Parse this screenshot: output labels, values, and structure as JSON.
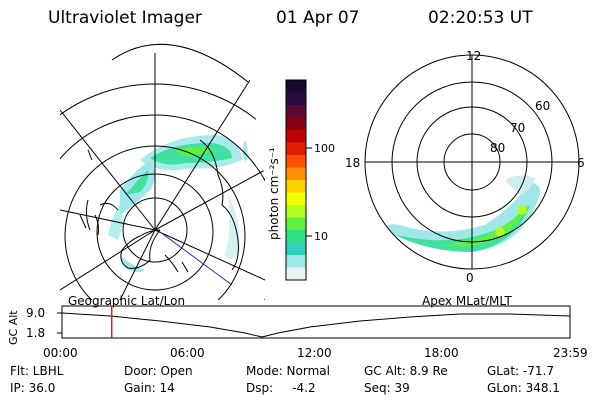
{
  "header": {
    "instrument": "Ultraviolet Imager",
    "date": "01 Apr 07",
    "time": "02:20:53 UT"
  },
  "colorbar": {
    "unit_label": "photon cm⁻²s⁻¹",
    "ticks": [
      "100",
      "10"
    ],
    "colors": [
      "#1a0a2e",
      "#2a0a40",
      "#5a0a30",
      "#8b0010",
      "#c00000",
      "#e02000",
      "#ff5000",
      "#ff9000",
      "#ffd000",
      "#f0ff00",
      "#b0ff20",
      "#60f040",
      "#30e080",
      "#30d0c0",
      "#a0e8e8",
      "#e8f4f4"
    ]
  },
  "geo_map": {
    "label": "Geographic Lat/Lon"
  },
  "polar_map": {
    "label": "Apex MLat/MLT",
    "mlt_labels": {
      "top": "12",
      "left": "18",
      "right": "6",
      "bottom": "0"
    },
    "lat_labels": [
      "60",
      "70",
      "80"
    ]
  },
  "altitude_plot": {
    "ylabel": "GC Alt",
    "yticks": [
      "9.0",
      "1.8"
    ],
    "xticks": [
      "00:00",
      "06:00",
      "12:00",
      "18:00",
      "23:59"
    ],
    "current_marker_hours": 2.35
  },
  "status": {
    "filter": "Flt: LBHL",
    "ip": "IP: 36.0",
    "door": "Door: Open",
    "gain": "Gain: 14",
    "mode": "Mode: Normal",
    "dsp": "Dsp:     -4.2",
    "gc_alt": "GC Alt: 8.9 Re",
    "seq": "Seq: 39",
    "glat": "GLat: -71.7",
    "glon": "GLon: 348.1"
  }
}
